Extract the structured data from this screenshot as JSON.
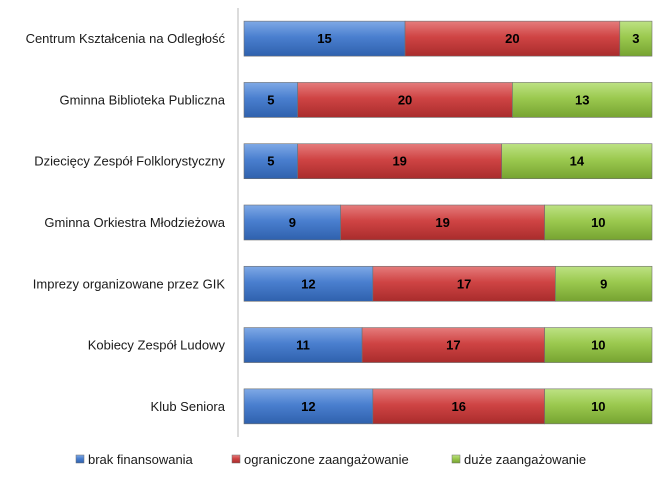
{
  "chart_data": {
    "type": "bar",
    "orientation": "horizontal",
    "stacking": "percent",
    "categories": [
      "Centrum Kształcenia na Odległość",
      "Gminna Biblioteka Publiczna",
      "Dziecięcy Zespół Folklorystyczny",
      "Gminna Orkiestra Młodzieżowa",
      "Imprezy organizowane przez GIK",
      "Kobiecy Zespół Ludowy",
      "Klub Seniora"
    ],
    "series": [
      {
        "name": "brak finansowania",
        "color": "#4a7fcf",
        "values": [
          15,
          5,
          5,
          9,
          12,
          11,
          12
        ]
      },
      {
        "name": "ograniczone zaangażowanie",
        "color": "#cf4444",
        "values": [
          20,
          20,
          19,
          19,
          17,
          17,
          16
        ]
      },
      {
        "name": "duże zaangażowanie",
        "color": "#9bc94f",
        "values": [
          3,
          13,
          14,
          10,
          9,
          10,
          10
        ]
      }
    ],
    "title": "",
    "xlabel": "",
    "ylabel": "",
    "grid": false,
    "legend": "bottom"
  }
}
